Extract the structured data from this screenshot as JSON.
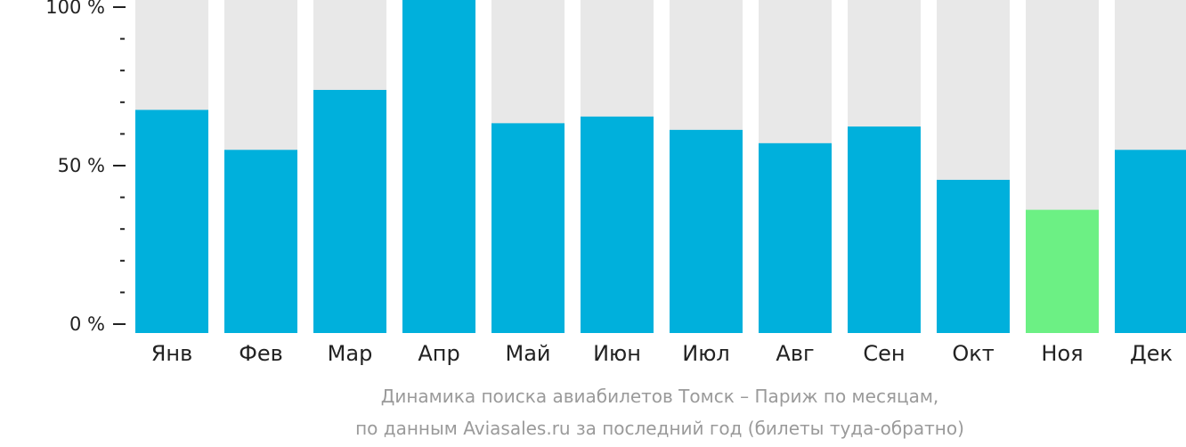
{
  "chart_data": {
    "type": "bar",
    "categories": [
      "Янв",
      "Фев",
      "Мар",
      "Апр",
      "Май",
      "Июн",
      "Июл",
      "Авг",
      "Сен",
      "Окт",
      "Ноя",
      "Дек"
    ],
    "values": [
      67,
      55,
      73,
      100,
      63,
      65,
      61,
      57,
      62,
      46,
      37,
      55
    ],
    "highlight_index": 10,
    "ylim": [
      0,
      100
    ],
    "major_ticks": [
      {
        "value": 0,
        "label": "0 %"
      },
      {
        "value": 50,
        "label": "50 %"
      },
      {
        "value": 100,
        "label": "100 %"
      }
    ],
    "minor_tick_step": 10,
    "caption_line1": "Динамика поиска авиабилетов Томск – Париж по месяцам,",
    "caption_line2": "по данным Aviasales.ru за последний год (билеты туда-обратно)",
    "colors": {
      "bar": "#00b0dc",
      "highlight": "#6cf084",
      "track": "#e8e8e8",
      "axis": "#222222",
      "caption": "#9a9a9a"
    }
  }
}
